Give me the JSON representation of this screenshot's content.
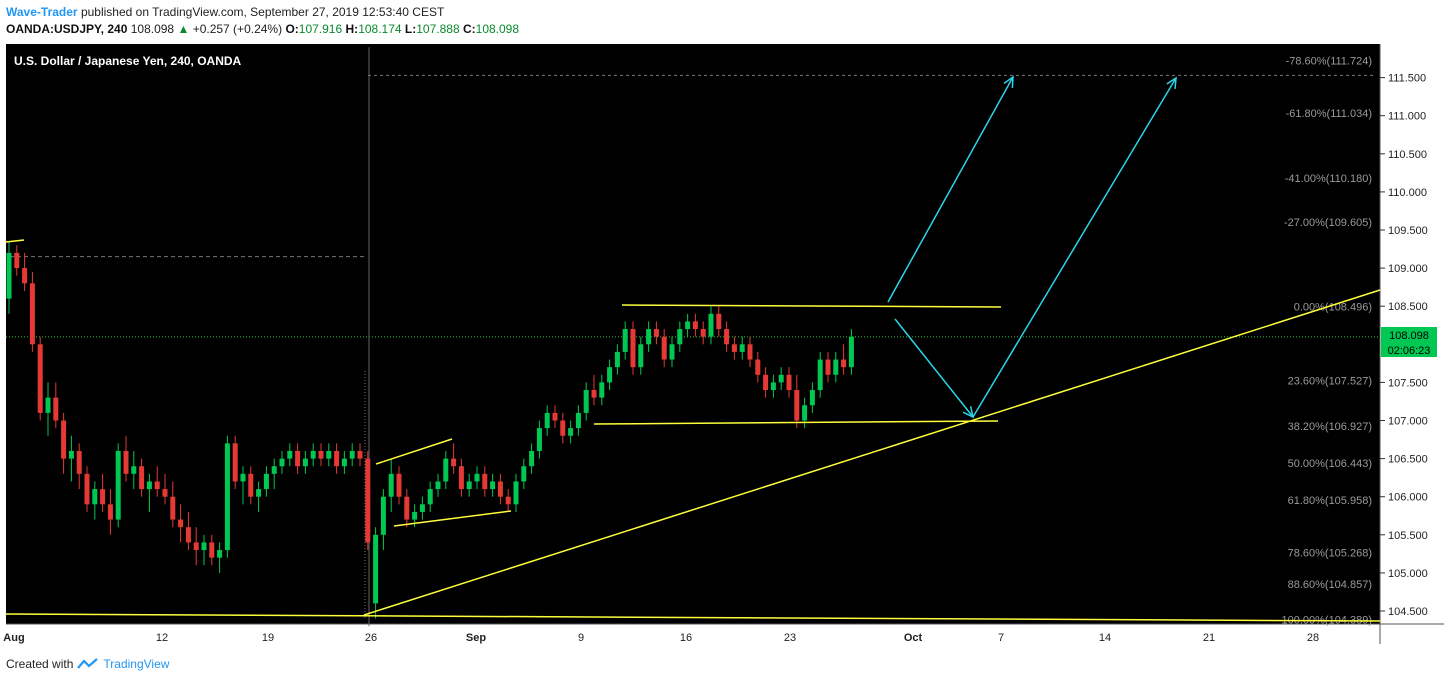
{
  "header": {
    "author": "Wave-Trader",
    "published": "published on TradingView.com, September 27, 2019 12:53:40 CEST",
    "symbol": "OANDA:USDJPY, 240",
    "last": "108.098",
    "change_arrow": "▲",
    "change": "+0.257 (+0.24%)",
    "open_label": "O:",
    "open": "107.916",
    "high_label": "H:",
    "high": "108.174",
    "low_label": "L:",
    "low": "107.888",
    "close_label": "C:",
    "close": "108.098"
  },
  "footer": {
    "created": "Created with",
    "brand": "TradingView"
  },
  "chart_data": {
    "type": "candlestick",
    "title": "U.S. Dollar / Japanese Yen, 240, OANDA",
    "y_ticks": [
      "111.500",
      "111.000",
      "110.500",
      "110.000",
      "109.500",
      "109.000",
      "108.500",
      "107.500",
      "107.000",
      "106.500",
      "106.000",
      "105.500",
      "105.000",
      "104.500"
    ],
    "x_ticks": [
      "Aug",
      "12",
      "19",
      "26",
      "Sep",
      "9",
      "16",
      "23",
      "Oct",
      "7",
      "14",
      "21",
      "28"
    ],
    "current_price": "108.098",
    "countdown": "02:06:23",
    "fib_levels": [
      {
        "label": "-78.60%(111.724)",
        "price": 111.724
      },
      {
        "label": "-61.80%(111.034)",
        "price": 111.034
      },
      {
        "label": "-41.00%(110.180)",
        "price": 110.18
      },
      {
        "label": "-27.00%(109.605)",
        "price": 109.605
      },
      {
        "label": "0.00%(108.496)",
        "price": 108.496
      },
      {
        "label": "23.60%(107.527)",
        "price": 107.527
      },
      {
        "label": "38.20%(106.927)",
        "price": 106.927
      },
      {
        "label": "50.00%(106.443)",
        "price": 106.443
      },
      {
        "label": "61.80%(105.958)",
        "price": 105.958
      },
      {
        "label": "78.60%(105.268)",
        "price": 105.268
      },
      {
        "label": "88.60%(104.857)",
        "price": 104.857
      },
      {
        "label": "100.00%(104.389)",
        "price": 104.389
      }
    ],
    "colors": {
      "up": "#00c853",
      "down": "#e53935",
      "trend": "#ffff3b",
      "arrow": "#29d6e8",
      "background": "#000000"
    },
    "candles": [
      [
        0,
        108.6,
        109.35,
        108.4,
        109.2
      ],
      [
        1,
        109.2,
        109.3,
        108.9,
        109.0
      ],
      [
        2,
        109.0,
        109.2,
        108.7,
        108.8
      ],
      [
        3,
        108.8,
        108.95,
        107.9,
        108.0
      ],
      [
        4,
        108.0,
        108.1,
        107.0,
        107.1
      ],
      [
        5,
        107.1,
        107.5,
        106.8,
        107.3
      ],
      [
        6,
        107.3,
        107.5,
        106.9,
        107.0
      ],
      [
        7,
        107.0,
        107.1,
        106.3,
        106.5
      ],
      [
        8,
        106.5,
        106.8,
        106.2,
        106.6
      ],
      [
        9,
        106.6,
        106.7,
        106.1,
        106.3
      ],
      [
        10,
        106.3,
        106.4,
        105.8,
        105.9
      ],
      [
        11,
        105.9,
        106.2,
        105.7,
        106.1
      ],
      [
        12,
        106.1,
        106.3,
        105.8,
        105.9
      ],
      [
        13,
        105.9,
        106.1,
        105.5,
        105.7
      ],
      [
        14,
        105.7,
        106.7,
        105.6,
        106.6
      ],
      [
        15,
        106.6,
        106.8,
        106.2,
        106.3
      ],
      [
        16,
        106.3,
        106.6,
        106.1,
        106.4
      ],
      [
        17,
        106.4,
        106.5,
        106.0,
        106.1
      ],
      [
        18,
        106.1,
        106.3,
        105.8,
        106.2
      ],
      [
        19,
        106.2,
        106.4,
        106.0,
        106.1
      ],
      [
        20,
        106.1,
        106.3,
        105.9,
        106.0
      ],
      [
        21,
        106.0,
        106.2,
        105.6,
        105.7
      ],
      [
        22,
        105.7,
        105.9,
        105.4,
        105.6
      ],
      [
        23,
        105.6,
        105.8,
        105.3,
        105.4
      ],
      [
        24,
        105.4,
        105.6,
        105.1,
        105.3
      ],
      [
        25,
        105.3,
        105.5,
        105.1,
        105.4
      ],
      [
        26,
        105.4,
        105.5,
        105.1,
        105.2
      ],
      [
        27,
        105.2,
        105.4,
        105.0,
        105.3
      ],
      [
        28,
        105.3,
        106.8,
        105.2,
        106.7
      ],
      [
        29,
        106.7,
        106.8,
        106.1,
        106.2
      ],
      [
        30,
        106.2,
        106.4,
        105.9,
        106.3
      ],
      [
        31,
        106.3,
        106.4,
        105.9,
        106.0
      ],
      [
        32,
        106.0,
        106.2,
        105.8,
        106.1
      ],
      [
        33,
        106.1,
        106.4,
        106.0,
        106.3
      ],
      [
        34,
        106.3,
        106.5,
        106.1,
        106.4
      ],
      [
        35,
        106.4,
        106.6,
        106.3,
        106.5
      ],
      [
        36,
        106.5,
        106.7,
        106.4,
        106.6
      ],
      [
        37,
        106.6,
        106.7,
        106.3,
        106.4
      ],
      [
        38,
        106.4,
        106.6,
        106.3,
        106.5
      ],
      [
        39,
        106.5,
        106.7,
        106.4,
        106.6
      ],
      [
        40,
        106.6,
        106.7,
        106.4,
        106.5
      ],
      [
        41,
        106.5,
        106.7,
        106.4,
        106.6
      ],
      [
        42,
        106.6,
        106.7,
        106.3,
        106.4
      ],
      [
        43,
        106.4,
        106.6,
        106.3,
        106.5
      ],
      [
        44,
        106.5,
        106.7,
        106.4,
        106.6
      ],
      [
        45,
        106.6,
        106.7,
        106.4,
        106.5
      ],
      [
        46,
        106.5,
        106.6,
        105.3,
        105.4
      ],
      [
        47,
        104.6,
        105.6,
        104.4,
        105.5
      ],
      [
        48,
        105.5,
        106.1,
        105.3,
        106.0
      ],
      [
        49,
        106.0,
        106.5,
        105.8,
        106.3
      ],
      [
        50,
        106.3,
        106.4,
        105.9,
        106.0
      ],
      [
        51,
        106.0,
        106.1,
        105.6,
        105.7
      ],
      [
        52,
        105.7,
        105.9,
        105.6,
        105.8
      ],
      [
        53,
        105.8,
        106.0,
        105.7,
        105.9
      ],
      [
        54,
        105.9,
        106.2,
        105.8,
        106.1
      ],
      [
        55,
        106.1,
        106.3,
        106.0,
        106.2
      ],
      [
        56,
        106.2,
        106.6,
        106.1,
        106.5
      ],
      [
        57,
        106.5,
        106.7,
        106.3,
        106.4
      ],
      [
        58,
        106.4,
        106.5,
        106.0,
        106.1
      ],
      [
        59,
        106.1,
        106.3,
        106.0,
        106.2
      ],
      [
        60,
        106.2,
        106.4,
        106.1,
        106.3
      ],
      [
        61,
        106.3,
        106.4,
        106.0,
        106.1
      ],
      [
        62,
        106.1,
        106.3,
        106.0,
        106.2
      ],
      [
        63,
        106.2,
        106.3,
        105.9,
        106.0
      ],
      [
        64,
        106.0,
        106.1,
        105.8,
        105.9
      ],
      [
        65,
        105.9,
        106.3,
        105.8,
        106.2
      ],
      [
        66,
        106.2,
        106.5,
        106.1,
        106.4
      ],
      [
        67,
        106.4,
        106.7,
        106.3,
        106.6
      ],
      [
        68,
        106.6,
        107.0,
        106.5,
        106.9
      ],
      [
        69,
        106.9,
        107.2,
        106.8,
        107.1
      ],
      [
        70,
        107.1,
        107.2,
        106.9,
        107.0
      ],
      [
        71,
        107.0,
        107.1,
        106.7,
        106.8
      ],
      [
        72,
        106.8,
        107.0,
        106.7,
        106.9
      ],
      [
        73,
        106.9,
        107.2,
        106.8,
        107.1
      ],
      [
        74,
        107.1,
        107.5,
        107.0,
        107.4
      ],
      [
        75,
        107.4,
        107.6,
        107.2,
        107.3
      ],
      [
        76,
        107.3,
        107.6,
        107.2,
        107.5
      ],
      [
        77,
        107.5,
        107.8,
        107.4,
        107.7
      ],
      [
        78,
        107.7,
        108.0,
        107.6,
        107.9
      ],
      [
        79,
        107.9,
        108.3,
        107.8,
        108.2
      ],
      [
        80,
        108.2,
        108.3,
        107.6,
        107.7
      ],
      [
        81,
        107.7,
        108.1,
        107.6,
        108.0
      ],
      [
        82,
        108.0,
        108.3,
        107.9,
        108.2
      ],
      [
        83,
        108.2,
        108.3,
        108.0,
        108.1
      ],
      [
        84,
        108.1,
        108.2,
        107.7,
        107.8
      ],
      [
        85,
        107.8,
        108.1,
        107.7,
        108.0
      ],
      [
        86,
        108.0,
        108.3,
        107.9,
        108.2
      ],
      [
        87,
        108.2,
        108.4,
        108.1,
        108.3
      ],
      [
        88,
        108.3,
        108.4,
        108.1,
        108.2
      ],
      [
        89,
        108.2,
        108.3,
        108.0,
        108.1
      ],
      [
        90,
        108.1,
        108.5,
        108.0,
        108.4
      ],
      [
        91,
        108.4,
        108.5,
        108.1,
        108.2
      ],
      [
        92,
        108.2,
        108.3,
        107.9,
        108.0
      ],
      [
        93,
        108.0,
        108.1,
        107.8,
        107.9
      ],
      [
        94,
        107.9,
        108.1,
        107.8,
        108.0
      ],
      [
        95,
        108.0,
        108.1,
        107.7,
        107.8
      ],
      [
        96,
        107.8,
        107.9,
        107.5,
        107.6
      ],
      [
        97,
        107.6,
        107.7,
        107.3,
        107.4
      ],
      [
        98,
        107.4,
        107.6,
        107.3,
        107.5
      ],
      [
        99,
        107.5,
        107.7,
        107.4,
        107.6
      ],
      [
        100,
        107.6,
        107.7,
        107.3,
        107.4
      ],
      [
        101,
        107.4,
        107.6,
        106.9,
        107.0
      ],
      [
        102,
        107.0,
        107.3,
        106.9,
        107.2
      ],
      [
        103,
        107.2,
        107.5,
        107.1,
        107.4
      ],
      [
        104,
        107.4,
        107.9,
        107.3,
        107.8
      ],
      [
        105,
        107.8,
        107.9,
        107.5,
        107.6
      ],
      [
        106,
        107.6,
        107.9,
        107.5,
        107.8
      ],
      [
        107,
        107.8,
        108.0,
        107.6,
        107.7
      ],
      [
        108,
        107.7,
        108.2,
        107.6,
        108.098
      ]
    ]
  }
}
